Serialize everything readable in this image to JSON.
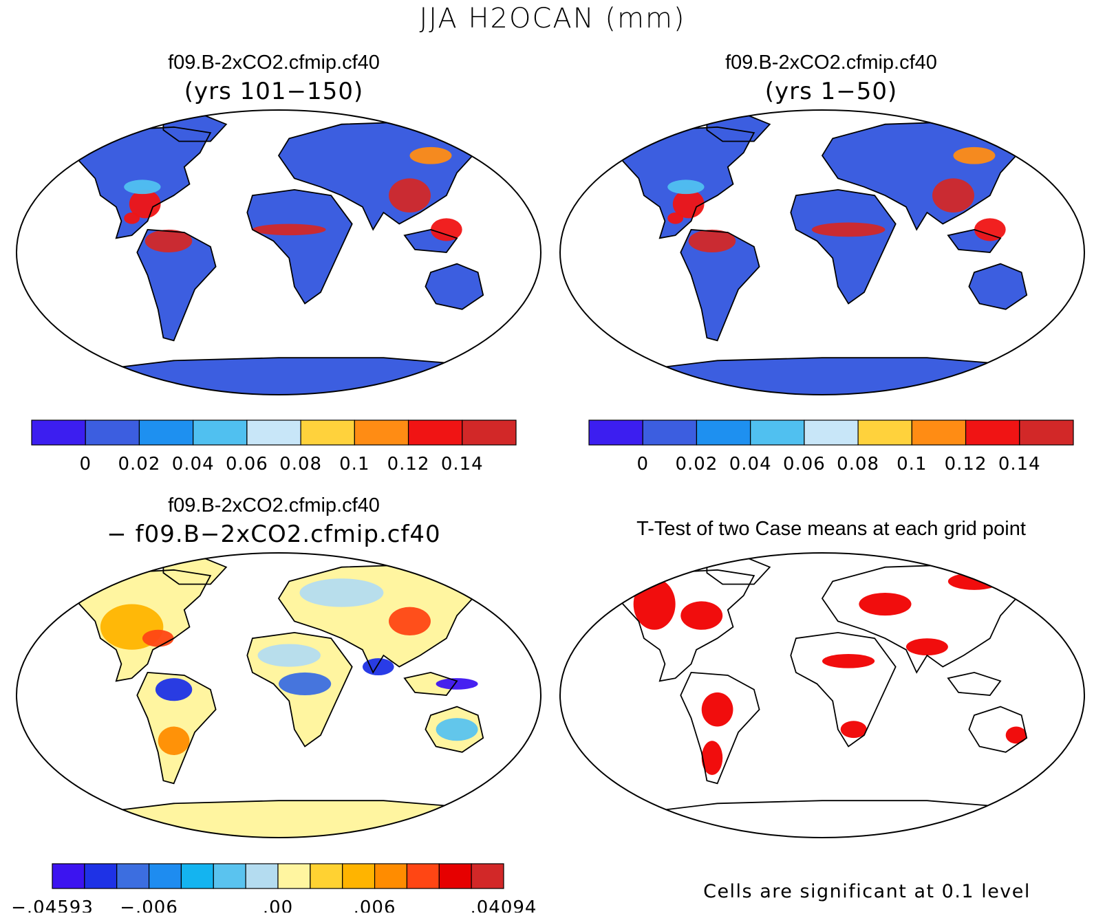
{
  "figure": {
    "title": "JJA H2OCAN (mm)"
  },
  "panels": [
    {
      "id": "top-left",
      "title_line1": "f09.B-2xCO2.cfmip.cf40",
      "title_line2": "(yrs 101−150)",
      "colorbar": {
        "colors": [
          "#3c1ef0",
          "#3c5ee0",
          "#1e90f0",
          "#50c0f0",
          "#c8e6f8",
          "#ffd23c",
          "#ff8c14",
          "#f01414",
          "#d22828"
        ],
        "labels": [
          "0",
          "0.02",
          "0.04",
          "0.06",
          "0.08",
          "0.1",
          "0.12",
          "0.14"
        ]
      }
    },
    {
      "id": "top-right",
      "title_line1": "f09.B-2xCO2.cfmip.cf40",
      "title_line2": "(yrs 1−50)",
      "colorbar": {
        "colors": [
          "#3c1ef0",
          "#3c5ee0",
          "#1e90f0",
          "#50c0f0",
          "#c8e6f8",
          "#ffd23c",
          "#ff8c14",
          "#f01414",
          "#d22828"
        ],
        "labels": [
          "0",
          "0.02",
          "0.04",
          "0.06",
          "0.08",
          "0.1",
          "0.12",
          "0.14"
        ]
      }
    },
    {
      "id": "bottom-left",
      "title_line1": "f09.B-2xCO2.cfmip.cf40",
      "title_line2": "− f09.B−2xCO2.cfmip.cf40",
      "colorbar": {
        "colors": [
          "#3c14f0",
          "#1e32e6",
          "#3c6ee0",
          "#1e8cf0",
          "#14b4f0",
          "#5ac3ef",
          "#b4dcf0",
          "#fff5a0",
          "#ffd232",
          "#ffb400",
          "#ff8c00",
          "#ff4614",
          "#e60000",
          "#d22828"
        ],
        "labels": [
          "−.04593",
          "−.006",
          ".00",
          ".006",
          ".04094"
        ]
      }
    },
    {
      "id": "bottom-right",
      "title_line1": "T-Test of two Case means at each grid point",
      "note": "Cells are significant at 0.1 level",
      "significant_color": "#f00000"
    }
  ]
}
